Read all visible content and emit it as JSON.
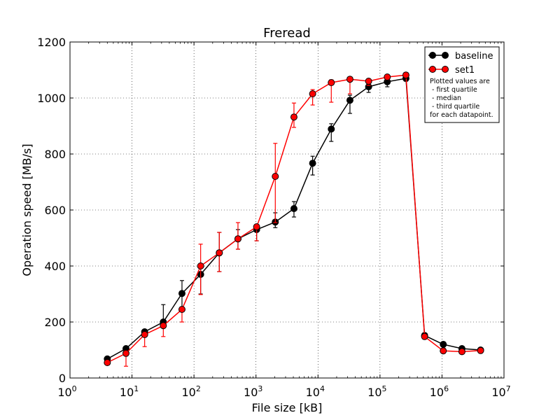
{
  "chart_data": {
    "type": "line",
    "title": "Freread",
    "xlabel": "File size [kB]",
    "ylabel": "Operation speed [MB/s]",
    "xscale": "log",
    "xlim": [
      1,
      10000000
    ],
    "ylim": [
      0,
      1200
    ],
    "grid": true,
    "legend_position": "top-right",
    "x_ticks": [
      {
        "value": 1,
        "base": "10",
        "exp": "0"
      },
      {
        "value": 10,
        "base": "10",
        "exp": "1"
      },
      {
        "value": 100,
        "base": "10",
        "exp": "2"
      },
      {
        "value": 1000,
        "base": "10",
        "exp": "3"
      },
      {
        "value": 10000,
        "base": "10",
        "exp": "4"
      },
      {
        "value": 100000,
        "base": "10",
        "exp": "5"
      },
      {
        "value": 1000000,
        "base": "10",
        "exp": "6"
      },
      {
        "value": 10000000,
        "base": "10",
        "exp": "7"
      }
    ],
    "y_ticks": [
      0,
      200,
      400,
      600,
      800,
      1000,
      1200
    ],
    "x": [
      4,
      8,
      16,
      32,
      64,
      128,
      256,
      512,
      1024,
      2048,
      4096,
      8192,
      16384,
      32768,
      65536,
      131072,
      262144,
      524288,
      1048576,
      2097152,
      4194304
    ],
    "series": [
      {
        "name": "baseline",
        "color": "#000000",
        "median": [
          68,
          105,
          165,
          200,
          302,
          370,
          447,
          497,
          530,
          557,
          605,
          767,
          889,
          992,
          1040,
          1058,
          1070,
          152,
          120,
          105,
          100
        ],
        "q1": [
          60,
          95,
          155,
          190,
          245,
          300,
          380,
          460,
          490,
          537,
          575,
          725,
          845,
          945,
          1020,
          1040,
          1060,
          145,
          115,
          100,
          96
        ],
        "q3": [
          72,
          110,
          170,
          262,
          348,
          400,
          520,
          530,
          545,
          590,
          630,
          792,
          908,
          1010,
          1055,
          1072,
          1082,
          158,
          125,
          110,
          104
        ]
      },
      {
        "name": "set1",
        "color": "#ff0000",
        "median": [
          55,
          88,
          155,
          187,
          245,
          400,
          447,
          497,
          540,
          720,
          932,
          1015,
          1055,
          1067,
          1060,
          1075,
          1082,
          148,
          97,
          94,
          98
        ],
        "q1": [
          50,
          42,
          112,
          148,
          200,
          298,
          380,
          460,
          490,
          555,
          895,
          975,
          985,
          1015,
          1045,
          1065,
          1075,
          140,
          92,
          89,
          93
        ],
        "q3": [
          62,
          98,
          165,
          195,
          250,
          478,
          520,
          555,
          548,
          838,
          982,
          1030,
          1065,
          1072,
          1065,
          1080,
          1088,
          155,
          102,
          100,
          103
        ]
      }
    ],
    "annotation": [
      "Plotted values are",
      " - first quartile",
      " - median",
      " - third quartile",
      "for each datapoint."
    ]
  }
}
